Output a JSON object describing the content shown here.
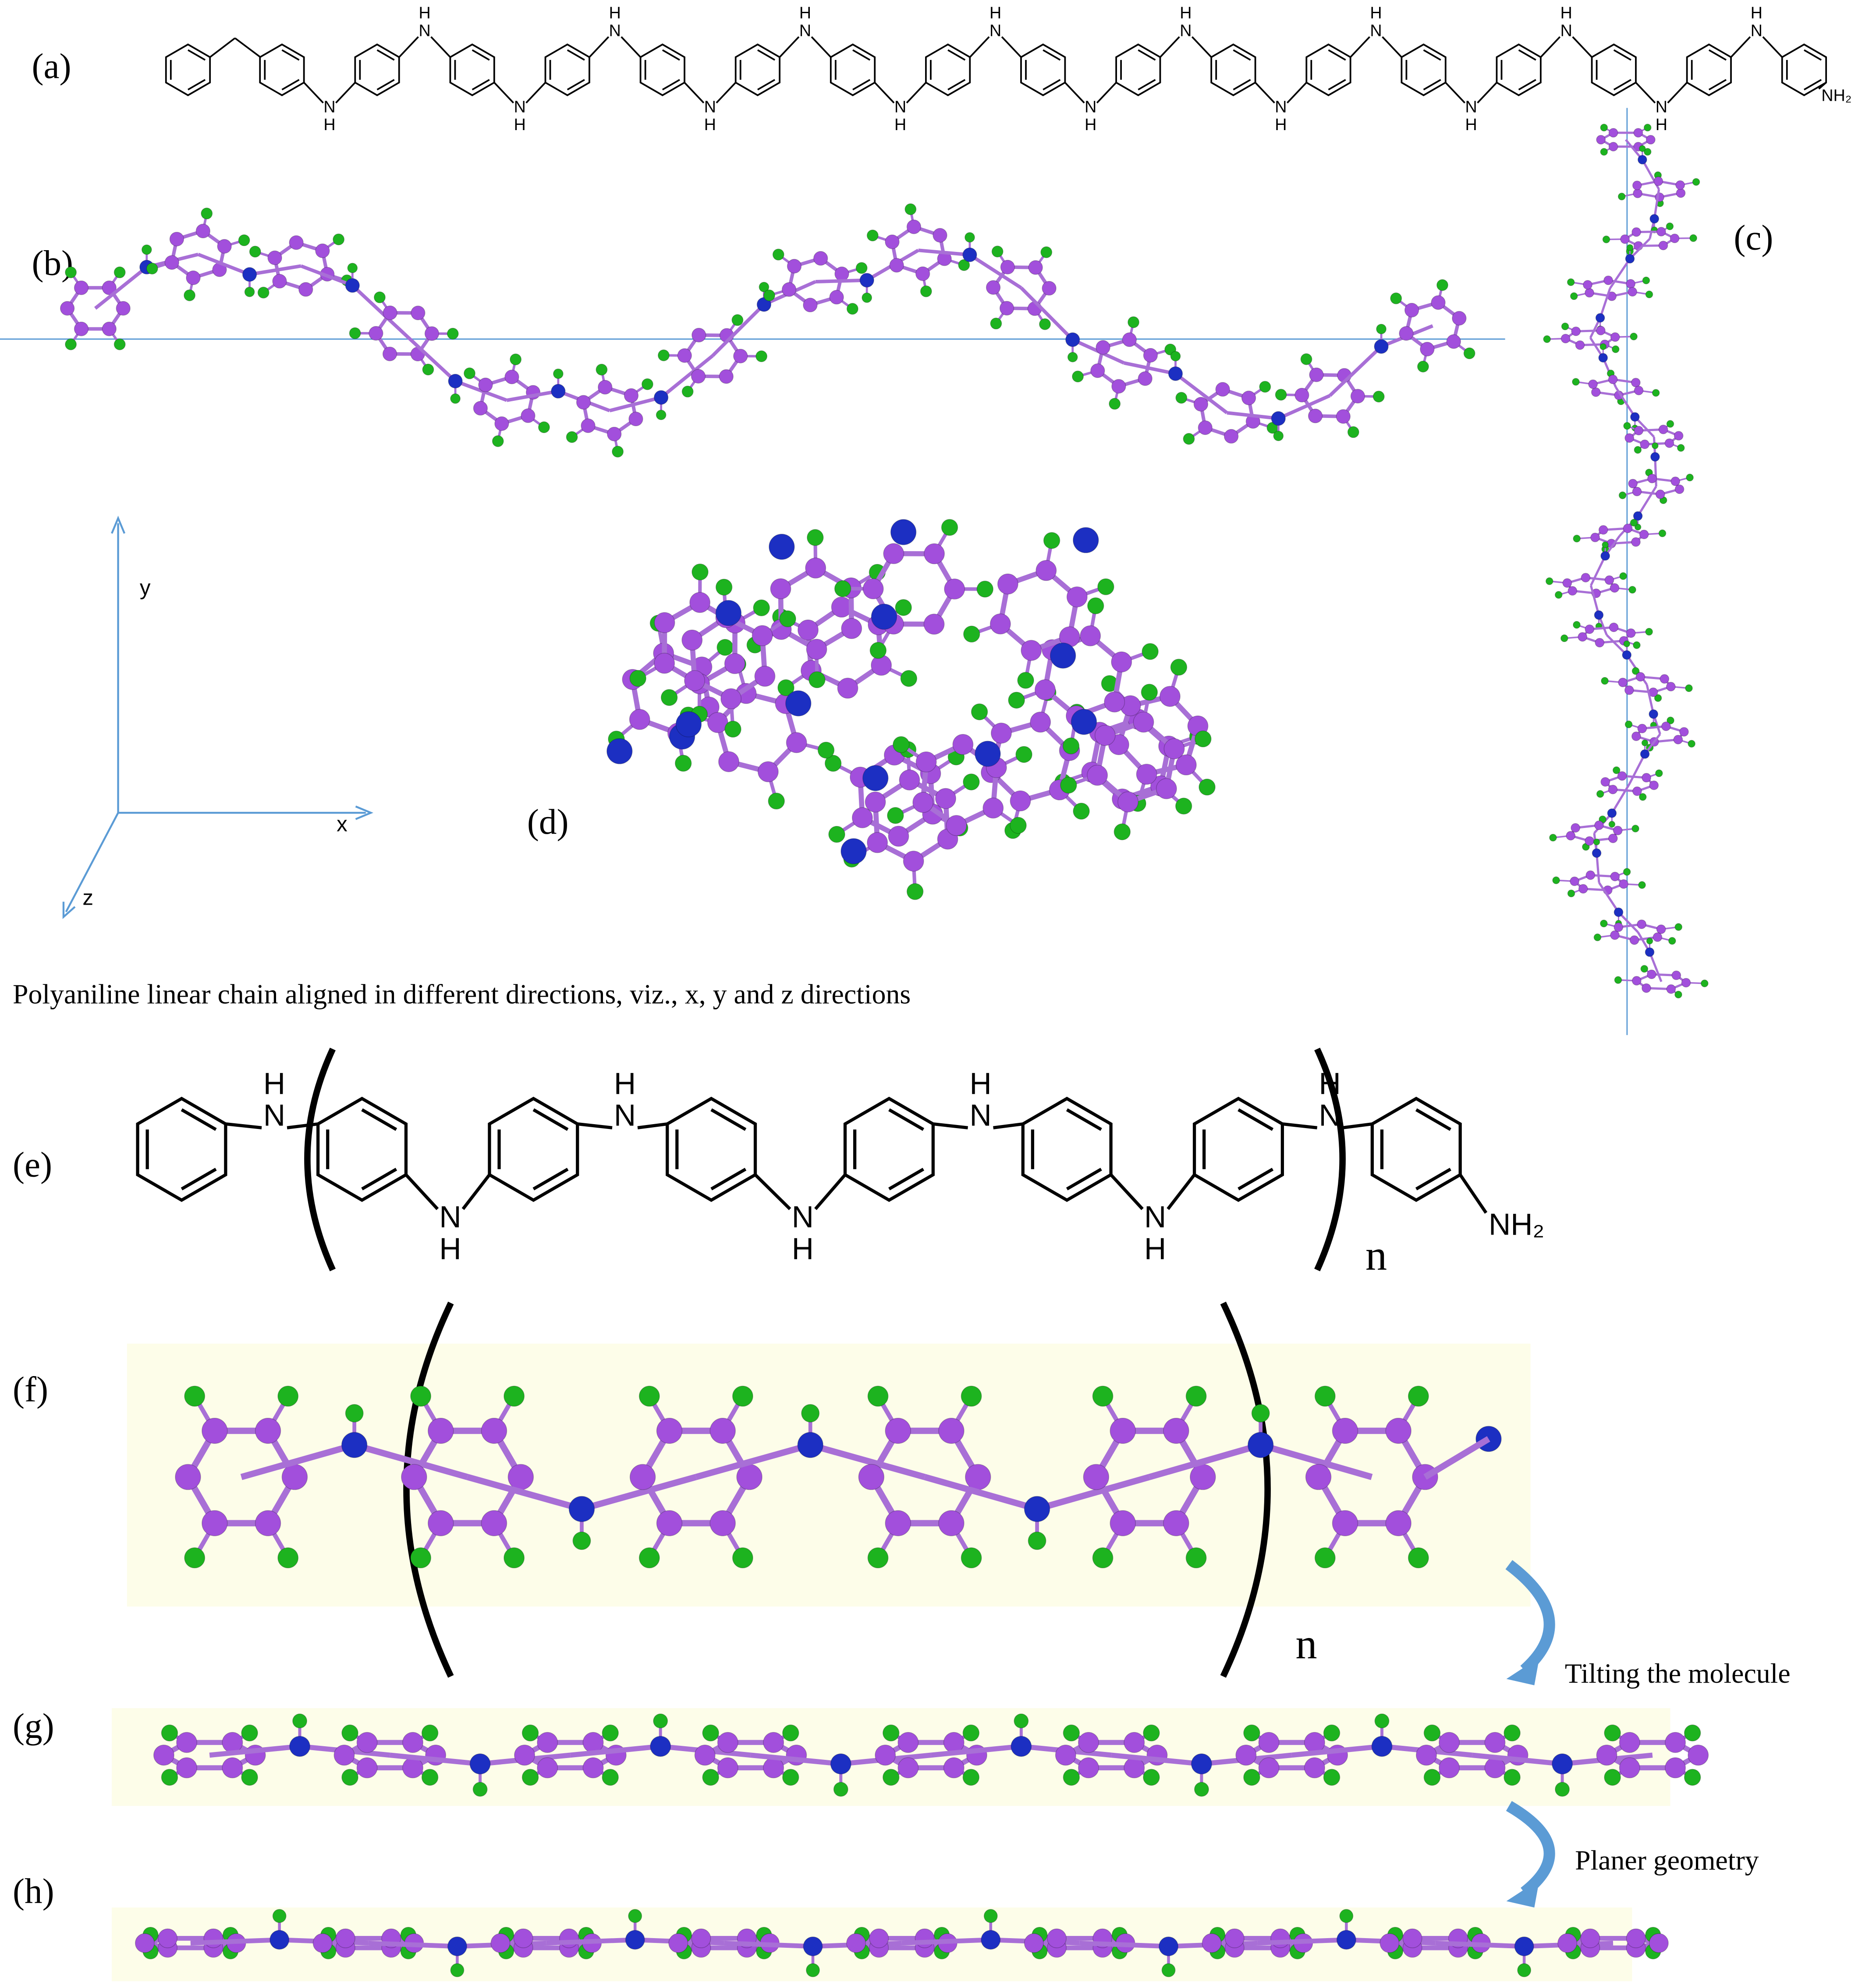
{
  "panel_labels": [
    "(a)",
    "(b)",
    "(c)",
    "(d)",
    "(e)",
    "(f)",
    "(g)",
    "(h)"
  ],
  "structure_a": {
    "n": [
      "N",
      "N",
      "N",
      "N",
      "N",
      "N",
      "N",
      "N",
      "N",
      "N",
      "N",
      "N",
      "N",
      "N",
      "N",
      "N"
    ],
    "h": [
      "H",
      "H",
      "H",
      "H",
      "H",
      "H",
      "H",
      "H",
      "H",
      "H",
      "H",
      "H",
      "H",
      "H",
      "H",
      "H"
    ],
    "terminal": "NH₂"
  },
  "axes": {
    "x": "x",
    "y": "y",
    "z": "z"
  },
  "caption": "Polyaniline linear chain aligned in different directions, viz., x, y and z directions",
  "structure_e": {
    "n": [
      "N",
      "N",
      "N",
      "N",
      "N",
      "N",
      "N"
    ],
    "h": [
      "H",
      "H",
      "H",
      "H",
      "H",
      "H",
      "H"
    ],
    "terminal": "NH₂",
    "repeat": "n"
  },
  "structure_f": {
    "repeat": "n"
  },
  "annotations": [
    "Tilting  the molecule",
    "Planer geometry"
  ]
}
